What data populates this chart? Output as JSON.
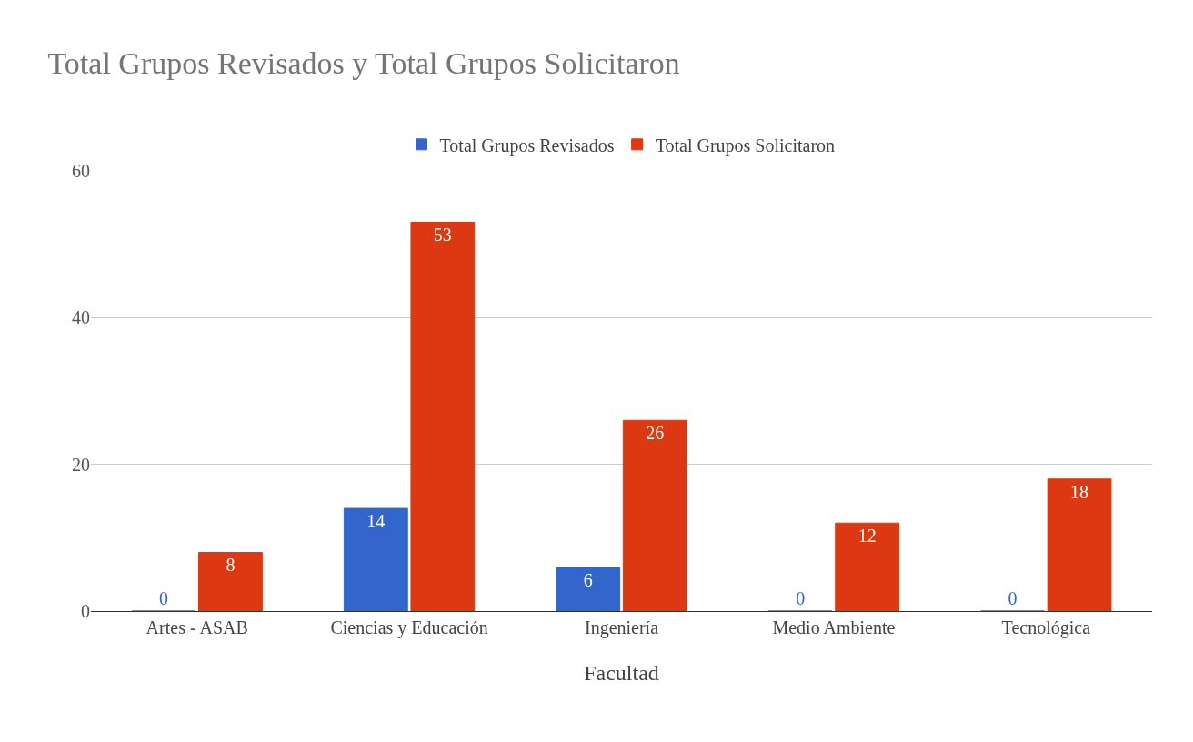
{
  "chart_data": {
    "type": "bar",
    "title": "Total Grupos Revisados y Total Grupos Solicitaron",
    "xlabel": "Facultad",
    "categories": [
      "Artes - ASAB",
      "Ciencias y Educación",
      "Ingeniería",
      "Medio Ambiente",
      "Tecnológica"
    ],
    "series": [
      {
        "name": "Total Grupos Revisados",
        "color": "#3366cc",
        "values": [
          0,
          14,
          6,
          0,
          0
        ]
      },
      {
        "name": "Total Grupos Solicitaron",
        "color": "#dc3912",
        "values": [
          8,
          53,
          26,
          12,
          18
        ]
      }
    ],
    "ylim": [
      0,
      60
    ],
    "yticks": [
      0,
      20,
      40,
      60
    ],
    "grid": "y",
    "legend": "top",
    "data_labels": true
  }
}
